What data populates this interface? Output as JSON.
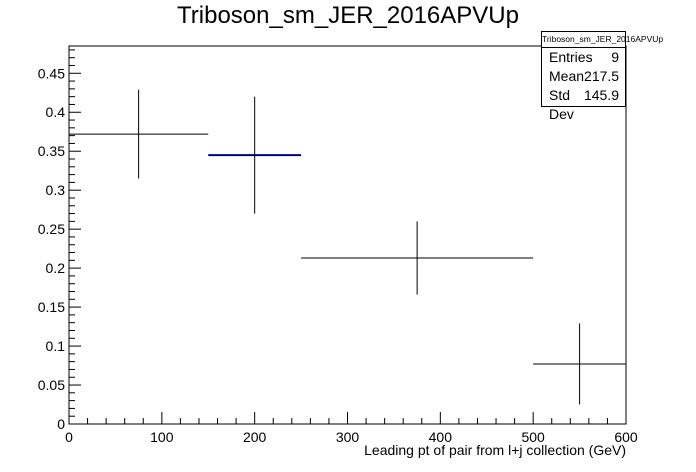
{
  "chart_data": {
    "type": "histogram",
    "title": "Triboson_sm_JER_2016APVUp",
    "xlabel": "Leading pt of pair from l+j collection (GeV)",
    "ylabel": "",
    "xlim": [
      0,
      600
    ],
    "ylim": [
      0,
      0.485
    ],
    "xticks": [
      0,
      100,
      200,
      300,
      400,
      500,
      600
    ],
    "xtick_labels": [
      "0",
      "100",
      "200",
      "300",
      "400",
      "500",
      "600"
    ],
    "yticks": [
      0,
      0.05,
      0.1,
      0.15,
      0.2,
      0.25,
      0.3,
      0.35,
      0.4,
      0.45
    ],
    "ytick_labels": [
      "0",
      "0.05",
      "0.1",
      "0.15",
      "0.2",
      "0.25",
      "0.3",
      "0.35",
      "0.4",
      "0.45"
    ],
    "grid": false,
    "legend": "top-right",
    "colors": {
      "line": "#000000",
      "highlight": "#000080"
    },
    "bins": [
      {
        "xlow": 0,
        "xhigh": 150,
        "x": 75,
        "y": 0.372,
        "err": 0.057
      },
      {
        "xlow": 150,
        "xhigh": 250,
        "x": 200,
        "y": 0.345,
        "err": 0.075
      },
      {
        "xlow": 250,
        "xhigh": 500,
        "x": 375,
        "y": 0.213,
        "err": 0.047
      },
      {
        "xlow": 500,
        "xhigh": 600,
        "x": 550,
        "y": 0.077,
        "err": 0.052
      }
    ],
    "stats": {
      "name": "Triboson_sm_JER_2016APVUp",
      "rows": [
        {
          "label": "Entries",
          "value": "9"
        },
        {
          "label": "Mean",
          "value": "217.5"
        },
        {
          "label": "Std Dev",
          "value": "145.9"
        }
      ]
    }
  }
}
